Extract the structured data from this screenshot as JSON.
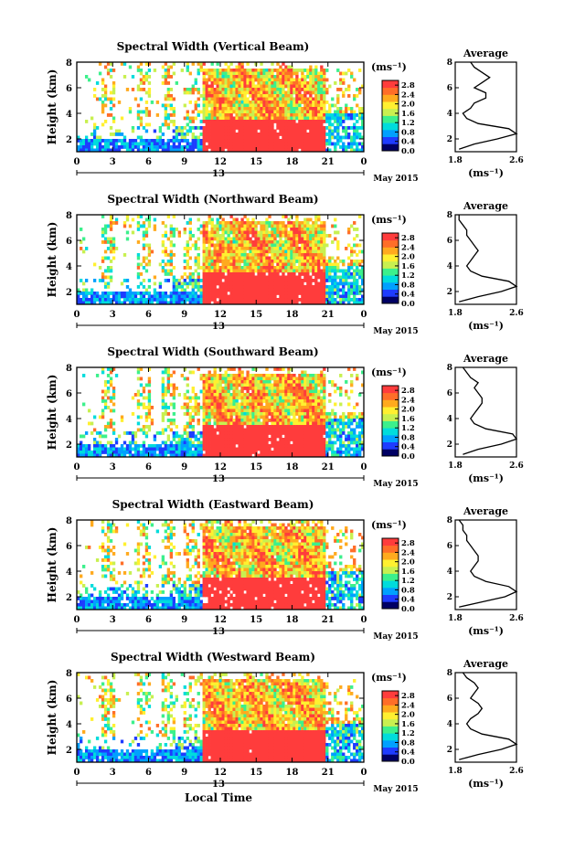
{
  "figure": {
    "x_tick_labels": [
      "0",
      "3",
      "6",
      "9",
      "12",
      "15",
      "18",
      "21",
      "0"
    ],
    "date_label": "13",
    "month_label": "May 2015",
    "x_axis_label": "Local Time",
    "y_axis_label": "Height (km)",
    "y_tick_labels": [
      "2",
      "4",
      "6",
      "8"
    ],
    "unit_label": "(ms⁻¹)",
    "colorbar_ticks": [
      "2.8",
      "2.4",
      "2.0",
      "1.6",
      "1.2",
      "0.8",
      "0.4",
      "0.0"
    ],
    "avg_title": "Average",
    "avg_x_ticks": [
      "1.8",
      "2.6"
    ],
    "avg_x_label": "(ms⁻¹)",
    "colormap": [
      "#000064",
      "#1e3cff",
      "#00a0ff",
      "#00dcdc",
      "#3cf08c",
      "#c8f050",
      "#fff030",
      "#ffaa1e",
      "#ff6e28",
      "#ff3c3c"
    ]
  },
  "chart_data": [
    {
      "type": "heatmap",
      "title": "Spectral Width (Vertical Beam)",
      "x": {
        "ticks": [
          0,
          3,
          6,
          9,
          12,
          15,
          18,
          21,
          24
        ],
        "range": [
          0,
          24
        ]
      },
      "y": {
        "label": "Height (km)",
        "ticks": [
          2,
          4,
          6,
          8
        ],
        "range": [
          1,
          8
        ]
      },
      "colorbar": {
        "range": [
          0.0,
          3.0
        ],
        "ticks": [
          0.0,
          0.4,
          0.8,
          1.2,
          1.6,
          2.0,
          2.4,
          2.8
        ]
      },
      "average_profile": {
        "title": "Average",
        "x_range": [
          1.8,
          2.6
        ],
        "heights": [
          1.2,
          1.6,
          2.0,
          2.4,
          2.8,
          3.2,
          3.6,
          4.0,
          4.4,
          4.8,
          5.2,
          5.6,
          6.0,
          6.4,
          6.8,
          7.2,
          7.6,
          8.0
        ],
        "values": [
          1.85,
          2.05,
          2.35,
          2.6,
          2.5,
          2.1,
          1.95,
          1.9,
          2.0,
          2.05,
          2.2,
          2.2,
          2.05,
          2.15,
          2.25,
          2.15,
          2.05,
          2.0
        ]
      }
    },
    {
      "type": "heatmap",
      "title": "Spectral Width (Northward Beam)",
      "x": {
        "ticks": [
          0,
          3,
          6,
          9,
          12,
          15,
          18,
          21,
          24
        ],
        "range": [
          0,
          24
        ]
      },
      "y": {
        "label": "Height (km)",
        "ticks": [
          2,
          4,
          6,
          8
        ],
        "range": [
          1,
          8
        ]
      },
      "colorbar": {
        "range": [
          0.0,
          3.0
        ],
        "ticks": [
          0.0,
          0.4,
          0.8,
          1.2,
          1.6,
          2.0,
          2.4,
          2.8
        ]
      },
      "average_profile": {
        "title": "Average",
        "x_range": [
          1.8,
          2.6
        ],
        "heights": [
          1.2,
          1.6,
          2.0,
          2.4,
          2.8,
          3.2,
          3.6,
          4.0,
          4.4,
          4.8,
          5.2,
          5.6,
          6.0,
          6.4,
          6.8,
          7.2,
          7.6,
          8.0
        ],
        "values": [
          1.85,
          2.1,
          2.4,
          2.6,
          2.5,
          2.15,
          2.0,
          1.95,
          2.0,
          2.05,
          2.1,
          2.05,
          2.0,
          1.95,
          1.95,
          1.9,
          1.85,
          1.85
        ]
      }
    },
    {
      "type": "heatmap",
      "title": "Spectral Width (Southward Beam)",
      "x": {
        "ticks": [
          0,
          3,
          6,
          9,
          12,
          15,
          18,
          21,
          24
        ],
        "range": [
          0,
          24
        ]
      },
      "y": {
        "label": "Height (km)",
        "ticks": [
          2,
          4,
          6,
          8
        ],
        "range": [
          1,
          8
        ]
      },
      "colorbar": {
        "range": [
          0.0,
          3.0
        ],
        "ticks": [
          0.0,
          0.4,
          0.8,
          1.2,
          1.6,
          2.0,
          2.4,
          2.8
        ]
      },
      "average_profile": {
        "title": "Average",
        "x_range": [
          1.8,
          2.6
        ],
        "heights": [
          1.2,
          1.6,
          2.0,
          2.4,
          2.8,
          3.2,
          3.6,
          4.0,
          4.4,
          4.8,
          5.2,
          5.6,
          6.0,
          6.4,
          6.8,
          7.2,
          7.6,
          8.0
        ],
        "values": [
          1.9,
          2.1,
          2.4,
          2.6,
          2.55,
          2.2,
          2.05,
          2.0,
          2.05,
          2.1,
          2.15,
          2.15,
          2.1,
          2.05,
          2.1,
          2.0,
          1.95,
          1.9
        ]
      }
    },
    {
      "type": "heatmap",
      "title": "Spectral Width (Eastward Beam)",
      "x": {
        "ticks": [
          0,
          3,
          6,
          9,
          12,
          15,
          18,
          21,
          24
        ],
        "range": [
          0,
          24
        ]
      },
      "y": {
        "label": "Height (km)",
        "ticks": [
          2,
          4,
          6,
          8
        ],
        "range": [
          1,
          8
        ]
      },
      "colorbar": {
        "range": [
          0.0,
          3.0
        ],
        "ticks": [
          0.0,
          0.4,
          0.8,
          1.2,
          1.6,
          2.0,
          2.4,
          2.8
        ]
      },
      "average_profile": {
        "title": "Average",
        "x_range": [
          1.8,
          2.6
        ],
        "heights": [
          1.2,
          1.6,
          2.0,
          2.4,
          2.8,
          3.2,
          3.6,
          4.0,
          4.4,
          4.8,
          5.2,
          5.6,
          6.0,
          6.4,
          6.8,
          7.2,
          7.6,
          8.0
        ],
        "values": [
          1.85,
          2.15,
          2.45,
          2.6,
          2.5,
          2.2,
          2.05,
          2.0,
          2.05,
          2.1,
          2.1,
          2.05,
          2.0,
          1.95,
          1.95,
          1.9,
          1.9,
          1.85
        ]
      }
    },
    {
      "type": "heatmap",
      "title": "Spectral Width (Westward Beam)",
      "x": {
        "ticks": [
          0,
          3,
          6,
          9,
          12,
          15,
          18,
          21,
          24
        ],
        "range": [
          0,
          24
        ]
      },
      "y": {
        "label": "Height (km)",
        "ticks": [
          2,
          4,
          6,
          8
        ],
        "range": [
          1,
          8
        ]
      },
      "colorbar": {
        "range": [
          0.0,
          3.0
        ],
        "ticks": [
          0.0,
          0.4,
          0.8,
          1.2,
          1.6,
          2.0,
          2.4,
          2.8
        ]
      },
      "average_profile": {
        "title": "Average",
        "x_range": [
          1.8,
          2.6
        ],
        "heights": [
          1.2,
          1.6,
          2.0,
          2.4,
          2.8,
          3.2,
          3.6,
          4.0,
          4.4,
          4.8,
          5.2,
          5.6,
          6.0,
          6.4,
          6.8,
          7.2,
          7.6,
          8.0
        ],
        "values": [
          1.85,
          2.1,
          2.4,
          2.6,
          2.5,
          2.15,
          2.0,
          1.95,
          2.0,
          2.1,
          2.15,
          2.1,
          2.0,
          2.05,
          2.1,
          2.05,
          1.95,
          1.9
        ]
      }
    }
  ]
}
